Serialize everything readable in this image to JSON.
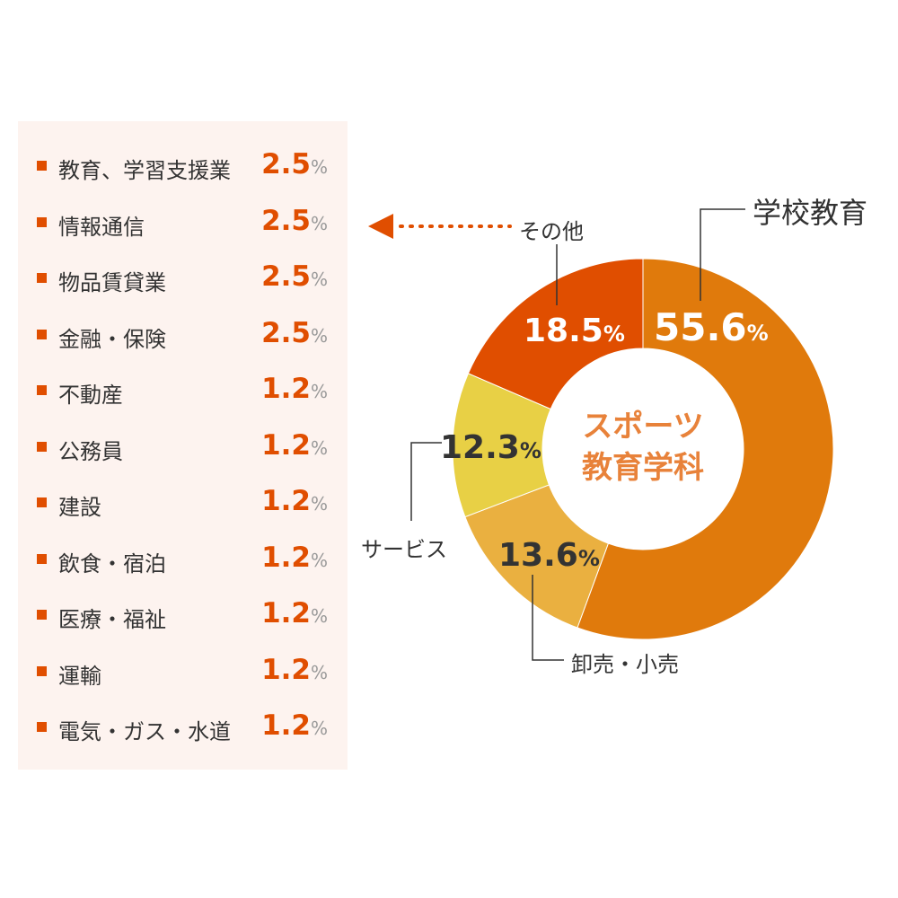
{
  "chart_data": {
    "type": "pie",
    "center_label": [
      "スポーツ",
      "教育学科"
    ],
    "slices": [
      {
        "label": "学校教育",
        "value": 55.6,
        "display": "55.6",
        "color": "#e07a0c",
        "text_color": "#ffffff"
      },
      {
        "label": "卸売・小売",
        "value": 13.6,
        "display": "13.6",
        "color": "#eab040",
        "text_color": "#333333"
      },
      {
        "label": "サービス",
        "value": 12.3,
        "display": "12.3",
        "color": "#e8d045",
        "text_color": "#333333"
      },
      {
        "label": "その他",
        "value": 18.5,
        "display": "18.5",
        "color": "#e04e00",
        "text_color": "#ffffff"
      }
    ],
    "unit": "%",
    "other_breakdown": [
      {
        "label": "教育、学習支援業",
        "value": "2.5"
      },
      {
        "label": "情報通信",
        "value": "2.5"
      },
      {
        "label": "物品賃貸業",
        "value": "2.5"
      },
      {
        "label": "金融・保険",
        "value": "2.5"
      },
      {
        "label": "不動産",
        "value": "1.2"
      },
      {
        "label": "公務員",
        "value": "1.2"
      },
      {
        "label": "建設",
        "value": "1.2"
      },
      {
        "label": "飲食・宿泊",
        "value": "1.2"
      },
      {
        "label": "医療・福祉",
        "value": "1.2"
      },
      {
        "label": "運輸",
        "value": "1.2"
      },
      {
        "label": "電気・ガス・水道",
        "value": "1.2"
      }
    ]
  }
}
